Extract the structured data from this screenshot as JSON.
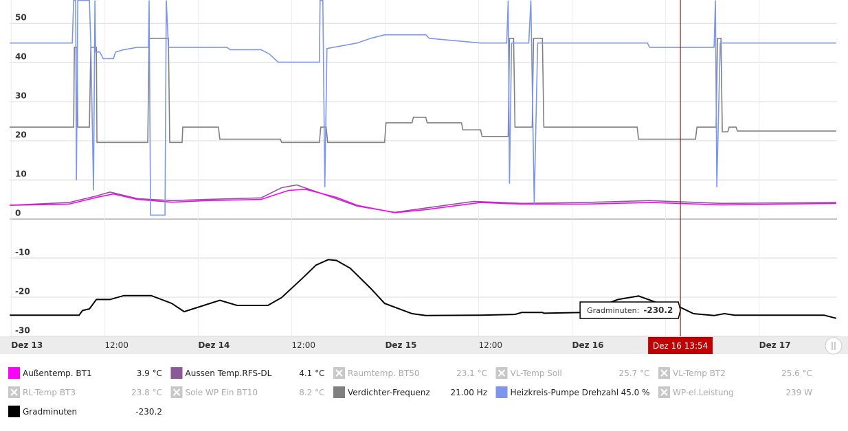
{
  "chart_data": {
    "type": "line",
    "xlim": [
      -0.2,
      106
    ],
    "ylim": [
      -30,
      56
    ],
    "grid": true,
    "yticks": [
      -30,
      -20,
      -10,
      0,
      10,
      20,
      30,
      40,
      50
    ],
    "xticks": [
      {
        "value": 0,
        "label": "Dez 13"
      },
      {
        "value": 12,
        "label": "12:00"
      },
      {
        "value": 24,
        "label": "Dez 14"
      },
      {
        "value": 36,
        "label": "12:00"
      },
      {
        "value": 48,
        "label": "Dez 15"
      },
      {
        "value": 60,
        "label": "12:00"
      },
      {
        "value": 72,
        "label": "Dez 16"
      },
      {
        "value": 84,
        "label": "12:00"
      },
      {
        "value": 96,
        "label": "Dez 17"
      }
    ],
    "cursor": {
      "x": 85.9,
      "label": "Dez 16 13:54"
    },
    "tooltip": {
      "name": "Gradminuten:",
      "value": "-230.2"
    },
    "series": [
      {
        "name": "Außentemp. BT1",
        "reading": "3.9 °C",
        "visible": true,
        "color": "#ff00ff",
        "x": [
          -0.18,
          7.4,
          10.93,
          13.13,
          16.21,
          20.62,
          25.02,
          32.07,
          35.59,
          37.8,
          41.76,
          44.41,
          49.25,
          53.22,
          60.26,
          65.55,
          73.48,
          82.29,
          91.1,
          105.9
        ],
        "values": [
          3.5,
          3.8,
          5.5,
          6.4,
          5.0,
          4.3,
          4.7,
          5.0,
          7.3,
          7.6,
          5.5,
          3.5,
          1.6,
          2.4,
          4.2,
          3.8,
          3.8,
          4.2,
          3.6,
          4.0
        ]
      },
      {
        "name": "Aussen Temp.RFS-DL",
        "reading": "4.1 °C",
        "visible": true,
        "color": "#8b5a96",
        "x": [
          -0.18,
          7.4,
          10.93,
          12.69,
          16.21,
          20.62,
          25.02,
          32.07,
          34.71,
          36.65,
          40.0,
          44.41,
          49.25,
          53.22,
          59.38,
          65.55,
          73.48,
          81.85,
          91.1,
          105.9
        ],
        "values": [
          3.5,
          4.2,
          5.9,
          6.9,
          5.2,
          4.7,
          5.0,
          5.4,
          8.0,
          8.7,
          6.4,
          3.3,
          1.7,
          2.8,
          4.5,
          4.0,
          4.2,
          4.7,
          4.0,
          4.2
        ]
      },
      {
        "name": "Raumtemp. BT50",
        "reading": "23.1 °C",
        "visible": false
      },
      {
        "name": "VL-Temp Soll",
        "reading": "25.7 °C",
        "visible": false
      },
      {
        "name": "VL-Temp BT2",
        "reading": "25.6 °C",
        "visible": false
      },
      {
        "name": "RL-Temp BT3",
        "reading": "23.8 °C",
        "visible": false
      },
      {
        "name": "Sole WP Ein BT10",
        "reading": "8.2 °C",
        "visible": false
      },
      {
        "name": "Verdichter-Frequenz",
        "reading": "21.00 Hz",
        "visible": true,
        "color": "#808080",
        "x": [
          -0.18,
          8.02,
          8.11,
          8.46,
          8.55,
          10.04,
          10.22,
          10.93,
          11.01,
          17.53,
          17.71,
          20.18,
          20.35,
          21.94,
          22.03,
          26.61,
          26.78,
          34.54,
          34.71,
          39.56,
          39.74,
          40.44,
          40.62,
          47.93,
          48.11,
          51.45,
          51.63,
          53.22,
          53.39,
          57.8,
          57.97,
          60.26,
          60.44,
          63.79,
          63.96,
          64.49,
          64.67,
          66.87,
          67.05,
          68.19,
          68.37,
          80.35,
          80.53,
          87.84,
          88.02,
          90.48,
          90.66,
          91.1,
          91.28,
          91.98,
          92.16,
          93.04,
          93.22,
          105.9
        ],
        "values": [
          23.5,
          23.5,
          43.9,
          43.9,
          23.5,
          23.5,
          43.9,
          43.9,
          19.6,
          19.6,
          46.2,
          46.2,
          19.6,
          19.6,
          23.5,
          23.5,
          20.4,
          20.4,
          19.6,
          19.6,
          23.5,
          23.5,
          19.6,
          19.6,
          24.6,
          24.6,
          26.0,
          26.0,
          24.6,
          24.6,
          22.8,
          22.8,
          21.1,
          21.1,
          46.2,
          46.2,
          23.5,
          23.5,
          46.2,
          46.2,
          23.5,
          23.5,
          20.4,
          20.4,
          23.5,
          23.5,
          46.2,
          46.2,
          22.3,
          22.3,
          23.5,
          23.5,
          22.5,
          22.5
        ]
      },
      {
        "name": "Heizkreis-Pumpe Drehzahl",
        "reading": "45.0 %",
        "visible": true,
        "color": "#7b96ec",
        "x": [
          -0.18,
          7.84,
          8.02,
          8.28,
          8.37,
          8.55,
          10.04,
          10.22,
          10.57,
          10.75,
          10.84,
          11.37,
          11.81,
          13.13,
          13.39,
          14.45,
          16.21,
          17.62,
          17.71,
          17.89,
          19.74,
          19.91,
          20.18,
          27.67,
          28.11,
          32.07,
          33.13,
          34.27,
          39.56,
          39.65,
          40.0,
          40.26,
          40.53,
          44.41,
          46.17,
          47.93,
          53.22,
          53.66,
          60.26,
          63.61,
          63.79,
          63.96,
          64.23,
          66.43,
          66.7,
          67.14,
          67.58,
          81.67,
          81.94,
          85.81,
          90.22,
          90.4,
          90.57,
          91.01,
          105.9
        ],
        "values": [
          45.0,
          45.0,
          55.9,
          55.9,
          9.9,
          55.9,
          55.9,
          45.0,
          7.3,
          55.9,
          42.7,
          42.7,
          41.0,
          41.0,
          42.7,
          43.3,
          43.9,
          43.9,
          55.9,
          1.0,
          1.0,
          55.9,
          43.9,
          43.9,
          43.3,
          43.3,
          42.2,
          40.1,
          40.1,
          55.9,
          55.9,
          8.1,
          43.6,
          45.0,
          46.2,
          47.1,
          47.1,
          46.2,
          45.0,
          45.0,
          55.9,
          9.0,
          45.0,
          45.0,
          55.9,
          3.8,
          45.0,
          45.0,
          43.9,
          43.9,
          43.9,
          55.9,
          8.1,
          45.0,
          45.0
        ]
      },
      {
        "name": "WP-el.Leistung",
        "reading": "239 W",
        "visible": false
      },
      {
        "name": "Gradminuten",
        "reading": "-230.2",
        "visible": true,
        "color": "#000000",
        "x": [
          -0.18,
          8.72,
          9.16,
          10.04,
          10.93,
          12.69,
          14.45,
          17.97,
          20.62,
          22.2,
          26.78,
          28.99,
          32.95,
          34.71,
          37.36,
          39.12,
          40.7,
          41.76,
          43.52,
          46.17,
          47.93,
          51.45,
          53.22,
          60.26,
          64.67,
          65.55,
          68.19,
          68.37,
          73.48,
          75.24,
          77.89,
          80.53,
          83.17,
          85.37,
          87.58,
          90.22,
          91.54,
          92.86,
          104.32,
          105.9
        ],
        "values": [
          -24.6,
          -24.6,
          -23.4,
          -23.0,
          -20.6,
          -20.6,
          -19.6,
          -19.6,
          -21.6,
          -23.7,
          -20.8,
          -22.1,
          -22.1,
          -20.1,
          -15.2,
          -11.8,
          -10.4,
          -10.6,
          -12.6,
          -17.8,
          -21.6,
          -24.2,
          -24.7,
          -24.6,
          -24.4,
          -23.9,
          -23.9,
          -24.1,
          -23.9,
          -22.5,
          -20.6,
          -19.7,
          -21.6,
          -22.1,
          -24.2,
          -24.7,
          -24.2,
          -24.6,
          -24.6,
          -25.4
        ]
      }
    ]
  }
}
